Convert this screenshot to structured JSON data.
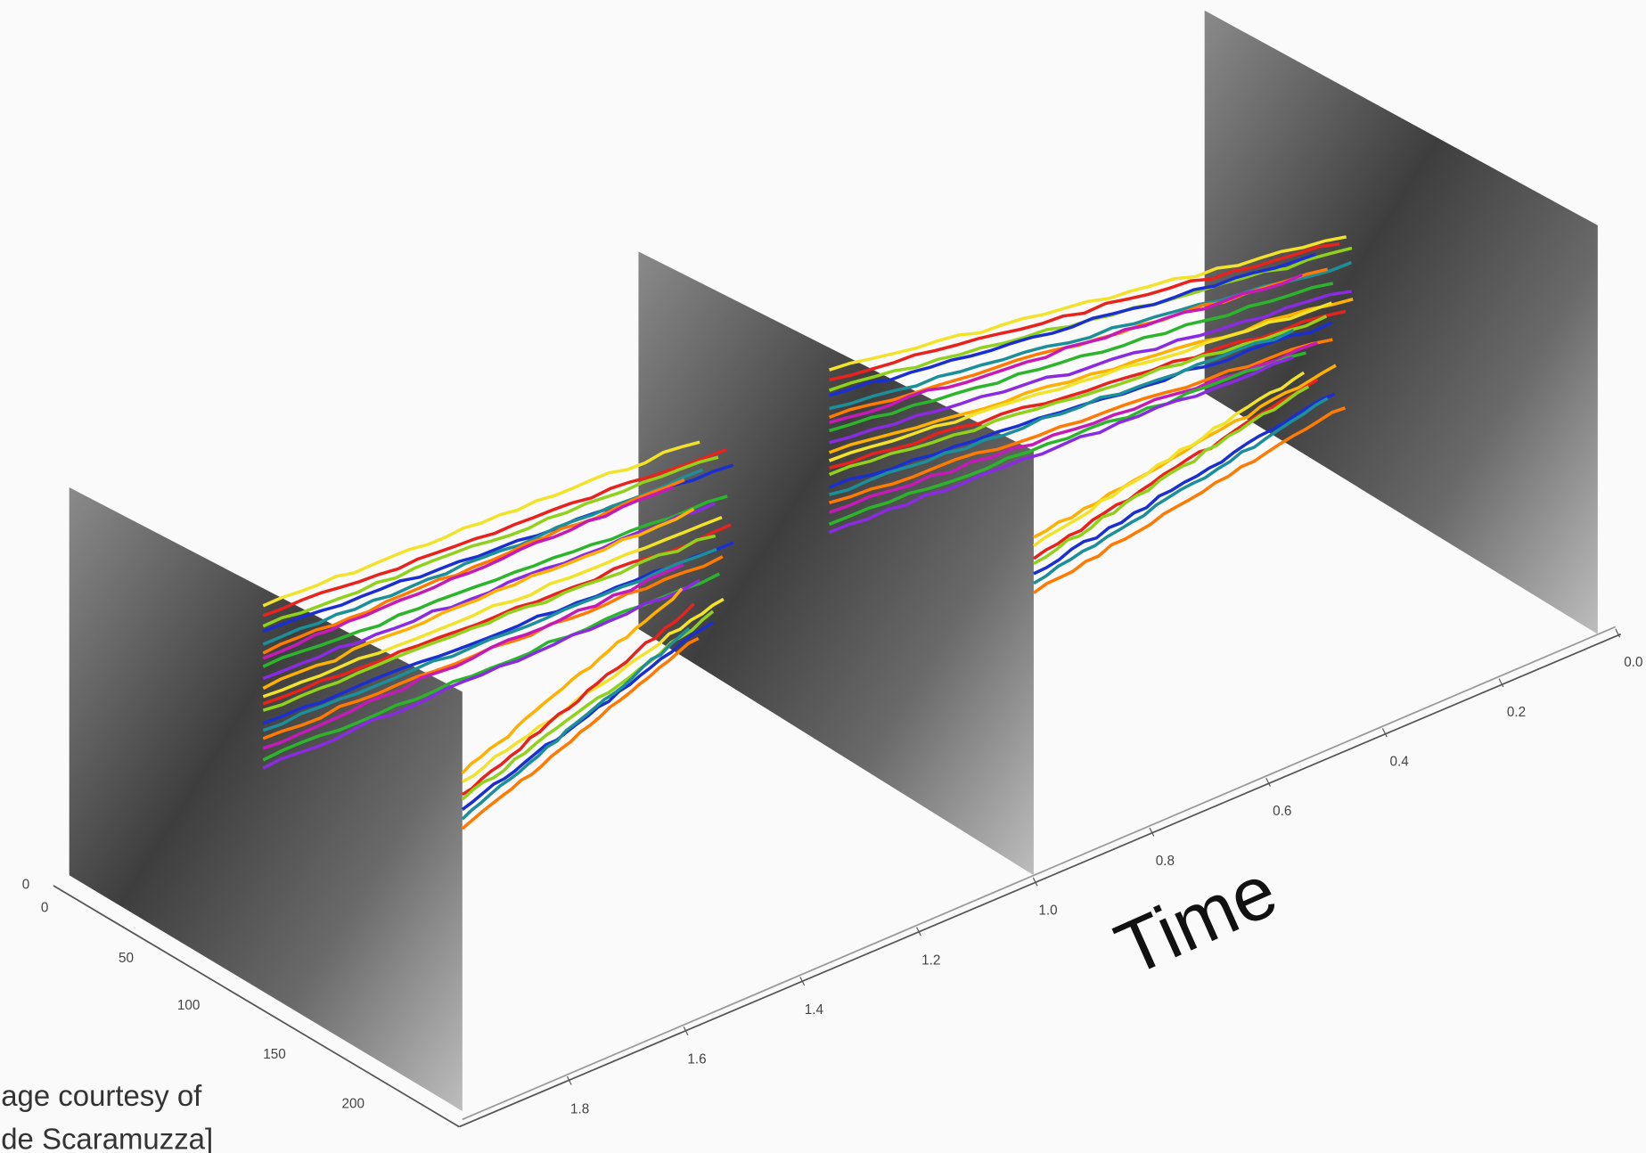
{
  "time_axis": {
    "label": "Time",
    "ticks": [
      "0.0",
      "0.2",
      "0.4",
      "0.6",
      "0.8",
      "1.0",
      "1.2",
      "1.4",
      "1.6",
      "1.8"
    ]
  },
  "x_axis": {
    "ticks": [
      "0",
      "50",
      "100",
      "150",
      "200"
    ]
  },
  "y_axis": {
    "ticks": [
      "0"
    ]
  },
  "caption": [
    "age courtesy of",
    "de Scaramuzza]"
  ]
}
